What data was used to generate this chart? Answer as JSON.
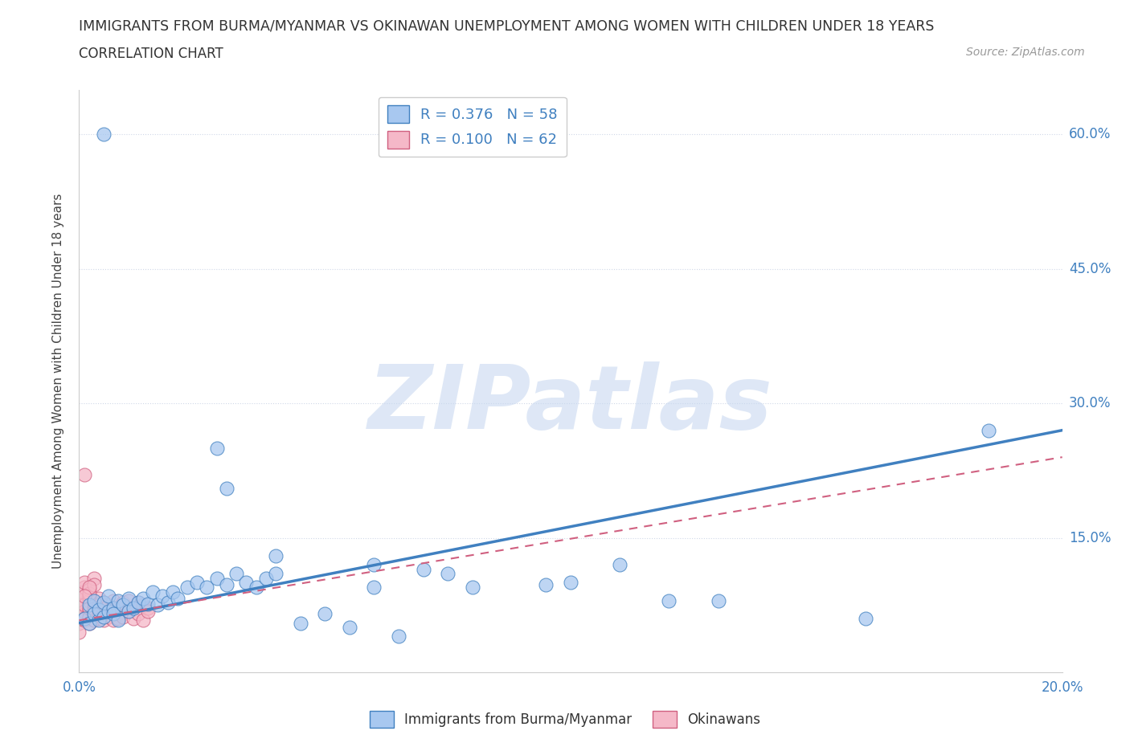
{
  "title": "IMMIGRANTS FROM BURMA/MYANMAR VS OKINAWAN UNEMPLOYMENT AMONG WOMEN WITH CHILDREN UNDER 18 YEARS",
  "subtitle": "CORRELATION CHART",
  "source": "Source: ZipAtlas.com",
  "ylabel": "Unemployment Among Women with Children Under 18 years",
  "xlim": [
    0.0,
    0.2
  ],
  "ylim": [
    0.0,
    0.65
  ],
  "xticks": [
    0.0,
    0.05,
    0.1,
    0.15,
    0.2
  ],
  "yticks": [
    0.0,
    0.15,
    0.3,
    0.45,
    0.6
  ],
  "xticklabels": [
    "0.0%",
    "",
    "",
    "",
    "20.0%"
  ],
  "yticklabels": [
    "",
    "15.0%",
    "30.0%",
    "45.0%",
    "60.0%"
  ],
  "blue_R": 0.376,
  "blue_N": 58,
  "pink_R": 0.1,
  "pink_N": 62,
  "blue_color": "#A8C8F0",
  "pink_color": "#F5B8C8",
  "blue_line_color": "#4080C0",
  "pink_line_color": "#D06080",
  "watermark": "ZIPatlas",
  "watermark_blue": "#C8D8F0",
  "watermark_gray": "#C0C0C0",
  "legend_label_blue": "Immigrants from Burma/Myanmar",
  "legend_label_pink": "Okinawans",
  "background_color": "#FFFFFF",
  "grid_color": "#D0D8E8",
  "blue_scatter_x": [
    0.001,
    0.002,
    0.002,
    0.003,
    0.003,
    0.004,
    0.004,
    0.005,
    0.005,
    0.006,
    0.006,
    0.007,
    0.007,
    0.008,
    0.008,
    0.009,
    0.01,
    0.01,
    0.011,
    0.012,
    0.013,
    0.014,
    0.015,
    0.016,
    0.017,
    0.018,
    0.019,
    0.02,
    0.022,
    0.024,
    0.026,
    0.028,
    0.03,
    0.032,
    0.034,
    0.036,
    0.038,
    0.04,
    0.045,
    0.05,
    0.055,
    0.06,
    0.065,
    0.07,
    0.075,
    0.08,
    0.095,
    0.1,
    0.11,
    0.12,
    0.028,
    0.03,
    0.06,
    0.13,
    0.16,
    0.185,
    0.005,
    0.04
  ],
  "blue_scatter_y": [
    0.06,
    0.055,
    0.075,
    0.065,
    0.08,
    0.058,
    0.07,
    0.062,
    0.078,
    0.068,
    0.085,
    0.072,
    0.065,
    0.08,
    0.058,
    0.075,
    0.068,
    0.082,
    0.072,
    0.078,
    0.082,
    0.076,
    0.09,
    0.075,
    0.085,
    0.078,
    0.09,
    0.082,
    0.095,
    0.1,
    0.095,
    0.105,
    0.098,
    0.11,
    0.1,
    0.095,
    0.105,
    0.11,
    0.055,
    0.065,
    0.05,
    0.095,
    0.04,
    0.115,
    0.11,
    0.095,
    0.098,
    0.1,
    0.12,
    0.08,
    0.25,
    0.205,
    0.12,
    0.08,
    0.06,
    0.27,
    0.6,
    0.13
  ],
  "pink_scatter_x": [
    0.0,
    0.0,
    0.0,
    0.0,
    0.0,
    0.001,
    0.001,
    0.001,
    0.001,
    0.001,
    0.001,
    0.002,
    0.002,
    0.002,
    0.002,
    0.002,
    0.003,
    0.003,
    0.003,
    0.003,
    0.003,
    0.004,
    0.004,
    0.004,
    0.004,
    0.005,
    0.005,
    0.005,
    0.006,
    0.006,
    0.006,
    0.007,
    0.007,
    0.007,
    0.008,
    0.008,
    0.008,
    0.009,
    0.009,
    0.009,
    0.01,
    0.01,
    0.011,
    0.011,
    0.012,
    0.012,
    0.013,
    0.013,
    0.014,
    0.014,
    0.0,
    0.001,
    0.002,
    0.001,
    0.002,
    0.003,
    0.002,
    0.003,
    0.001,
    0.002,
    0.001,
    0.0
  ],
  "pink_scatter_y": [
    0.055,
    0.065,
    0.075,
    0.06,
    0.08,
    0.065,
    0.058,
    0.078,
    0.068,
    0.075,
    0.06,
    0.07,
    0.062,
    0.08,
    0.055,
    0.072,
    0.065,
    0.078,
    0.058,
    0.072,
    0.068,
    0.075,
    0.06,
    0.082,
    0.065,
    0.07,
    0.058,
    0.078,
    0.068,
    0.062,
    0.075,
    0.07,
    0.058,
    0.08,
    0.065,
    0.072,
    0.06,
    0.075,
    0.062,
    0.078,
    0.068,
    0.08,
    0.072,
    0.06,
    0.078,
    0.065,
    0.075,
    0.058,
    0.072,
    0.068,
    0.09,
    0.095,
    0.085,
    0.1,
    0.092,
    0.105,
    0.088,
    0.098,
    0.22,
    0.095,
    0.085,
    0.045
  ],
  "blue_trend_x0": 0.0,
  "blue_trend_x1": 0.2,
  "blue_trend_y0": 0.055,
  "blue_trend_y1": 0.27,
  "pink_trend_x0": 0.0,
  "pink_trend_x1": 0.2,
  "pink_trend_y0": 0.058,
  "pink_trend_y1": 0.24
}
